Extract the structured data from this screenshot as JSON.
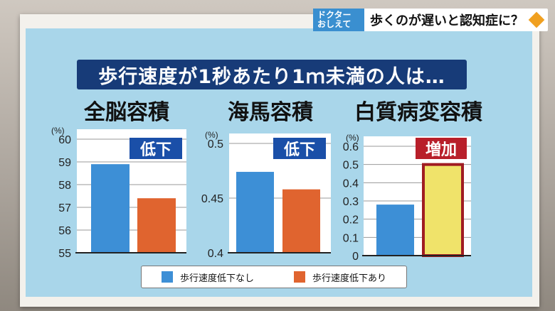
{
  "corner": {
    "logo_top": "ドクター",
    "logo_bottom": "おしえて",
    "title": "歩くのが遅いと認知症に？"
  },
  "headline": "歩行速度が1秒あたり1ｍ未満の人は…",
  "colors": {
    "no_decline": "#3d8fd6",
    "decline": "#e0642f",
    "highlight": "#f0e36a",
    "highlight_border": "#a01c22"
  },
  "legend": {
    "no_decline": "歩行速度低下なし",
    "decline": "歩行速度低下あり"
  },
  "chart_data": [
    {
      "type": "bar",
      "title": "全脳容積",
      "badge": "低下",
      "unit": "(%)",
      "categories": [
        "歩行速度低下なし",
        "歩行速度低下あり"
      ],
      "values": [
        58.9,
        57.4
      ],
      "ylim": [
        55,
        60
      ],
      "yticks": [
        "55",
        "56",
        "57",
        "58",
        "59",
        "60"
      ]
    },
    {
      "type": "bar",
      "title": "海馬容積",
      "badge": "低下",
      "unit": "(%)",
      "categories": [
        "歩行速度低下なし",
        "歩行速度低下あり"
      ],
      "values": [
        0.474,
        0.458
      ],
      "ylim": [
        0.4,
        0.5
      ],
      "yticks": [
        "0.4",
        "0.45",
        "0.5"
      ]
    },
    {
      "type": "bar",
      "title": "白質病変容積",
      "badge": "増加",
      "unit": "(%)",
      "categories": [
        "歩行速度低下なし",
        "歩行速度低下あり"
      ],
      "values": [
        0.28,
        0.5
      ],
      "ylim": [
        0,
        0.6
      ],
      "yticks": [
        "0",
        "0.1",
        "0.2",
        "0.3",
        "0.4",
        "0.5",
        "0.6"
      ]
    }
  ]
}
